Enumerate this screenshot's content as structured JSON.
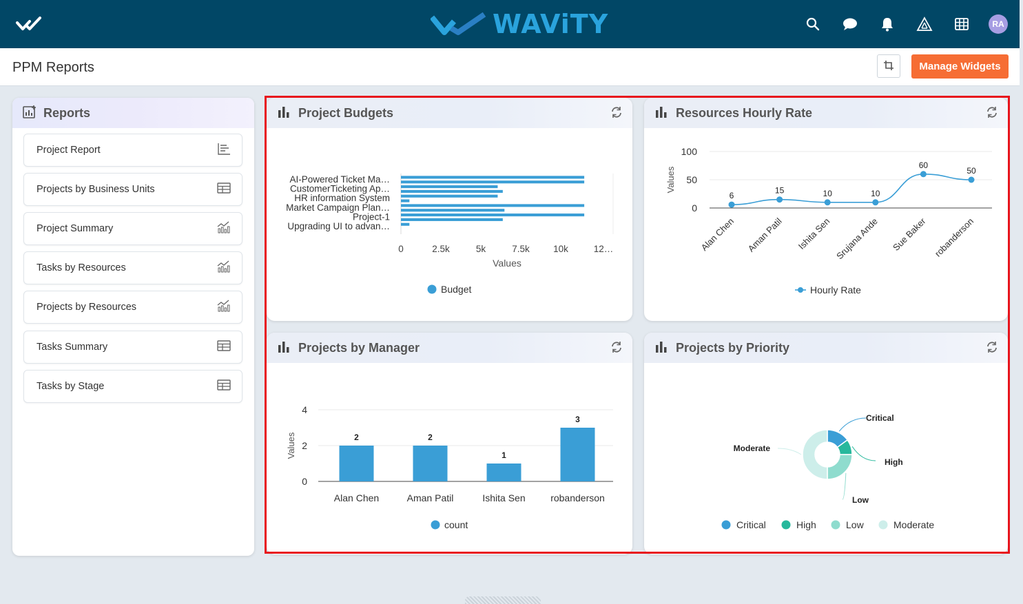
{
  "header": {
    "logo_text": "WAViTY",
    "avatar_initials": "RA",
    "icons": [
      "home-check-icon",
      "search-icon",
      "chat-icon",
      "bell-icon",
      "triangle-network-icon",
      "grid-icon"
    ]
  },
  "subheader": {
    "title": "PPM Reports",
    "manage_widgets_label": "Manage Widgets"
  },
  "sidebar": {
    "title": "Reports",
    "items": [
      {
        "label": "Project Report",
        "icon": "list-lines-icon"
      },
      {
        "label": "Projects by Business Units",
        "icon": "table-icon"
      },
      {
        "label": "Project Summary",
        "icon": "bar-line-chart-icon"
      },
      {
        "label": "Tasks by Resources",
        "icon": "bar-line-chart-icon"
      },
      {
        "label": "Projects by Resources",
        "icon": "bar-line-chart-icon"
      },
      {
        "label": "Tasks Summary",
        "icon": "table-icon"
      },
      {
        "label": "Tasks by Stage",
        "icon": "table-icon"
      }
    ]
  },
  "colors": {
    "header_bg": "#014766",
    "accent_orange": "#f66d34",
    "chart_blue": "#3a9ed6",
    "highlight_red": "#e8141c"
  },
  "widgets": {
    "project_budgets": {
      "title": "Project Budgets"
    },
    "resources_hourly_rate": {
      "title": "Resources Hourly Rate"
    },
    "projects_by_manager": {
      "title": "Projects by Manager"
    },
    "projects_by_priority": {
      "title": "Projects by Priority"
    }
  },
  "chart_data": [
    {
      "id": "project_budgets",
      "type": "bar",
      "orientation": "horizontal",
      "title": "Project Budgets",
      "xlabel": "Values",
      "x_ticks": [
        "0",
        "2.5k",
        "5k",
        "7.5k",
        "10k",
        "12…"
      ],
      "xlim": [
        0,
        12500
      ],
      "categories": [
        "AI-Powered Ticket Ma…",
        "",
        "CustomerTicketing Ap…",
        "",
        "HR information System",
        "",
        "Market Campaign Plan…",
        "",
        "Project-1",
        "",
        "Upgrading UI to advan…",
        ""
      ],
      "series": [
        {
          "name": "Budget",
          "values": [
            10800,
            10800,
            5700,
            6000,
            5700,
            500,
            10800,
            6100,
            10800,
            6000,
            500,
            0
          ]
        }
      ],
      "legend": [
        "Budget"
      ],
      "legend_position": "bottom"
    },
    {
      "id": "resources_hourly_rate",
      "type": "line",
      "title": "Resources Hourly Rate",
      "ylabel": "Values",
      "ylim": [
        0,
        100
      ],
      "y_ticks": [
        "0",
        "50",
        "100"
      ],
      "categories": [
        "Alan Chen",
        "Aman Patil",
        "Ishita Sen",
        "Srujana Ande",
        "Sue Baker",
        "robanderson"
      ],
      "series": [
        {
          "name": "Hourly Rate",
          "values": [
            6,
            15,
            10,
            10,
            60,
            50
          ]
        }
      ],
      "data_labels": [
        "6",
        "15",
        "10",
        "10",
        "60",
        "50"
      ],
      "legend": [
        "Hourly Rate"
      ],
      "legend_position": "bottom"
    },
    {
      "id": "projects_by_manager",
      "type": "bar",
      "orientation": "vertical",
      "title": "Projects by Manager",
      "ylabel": "Values",
      "ylim": [
        0,
        4
      ],
      "y_ticks": [
        "0",
        "2",
        "4"
      ],
      "categories": [
        "Alan Chen",
        "Aman Patil",
        "Ishita Sen",
        "robanderson"
      ],
      "series": [
        {
          "name": "count",
          "values": [
            2,
            2,
            1,
            3
          ]
        }
      ],
      "data_labels": [
        "2",
        "2",
        "1",
        "3"
      ],
      "legend": [
        "count"
      ],
      "legend_position": "bottom"
    },
    {
      "id": "projects_by_priority",
      "type": "pie",
      "variant": "donut",
      "title": "Projects by Priority",
      "categories": [
        "Critical",
        "High",
        "Low",
        "Moderate"
      ],
      "values": [
        15,
        10,
        25,
        50
      ],
      "colors": [
        "#3a9ed6",
        "#27b89c",
        "#8fdcce",
        "#cdeeea"
      ],
      "legend": [
        "Critical",
        "High",
        "Low",
        "Moderate"
      ],
      "legend_position": "bottom"
    }
  ]
}
